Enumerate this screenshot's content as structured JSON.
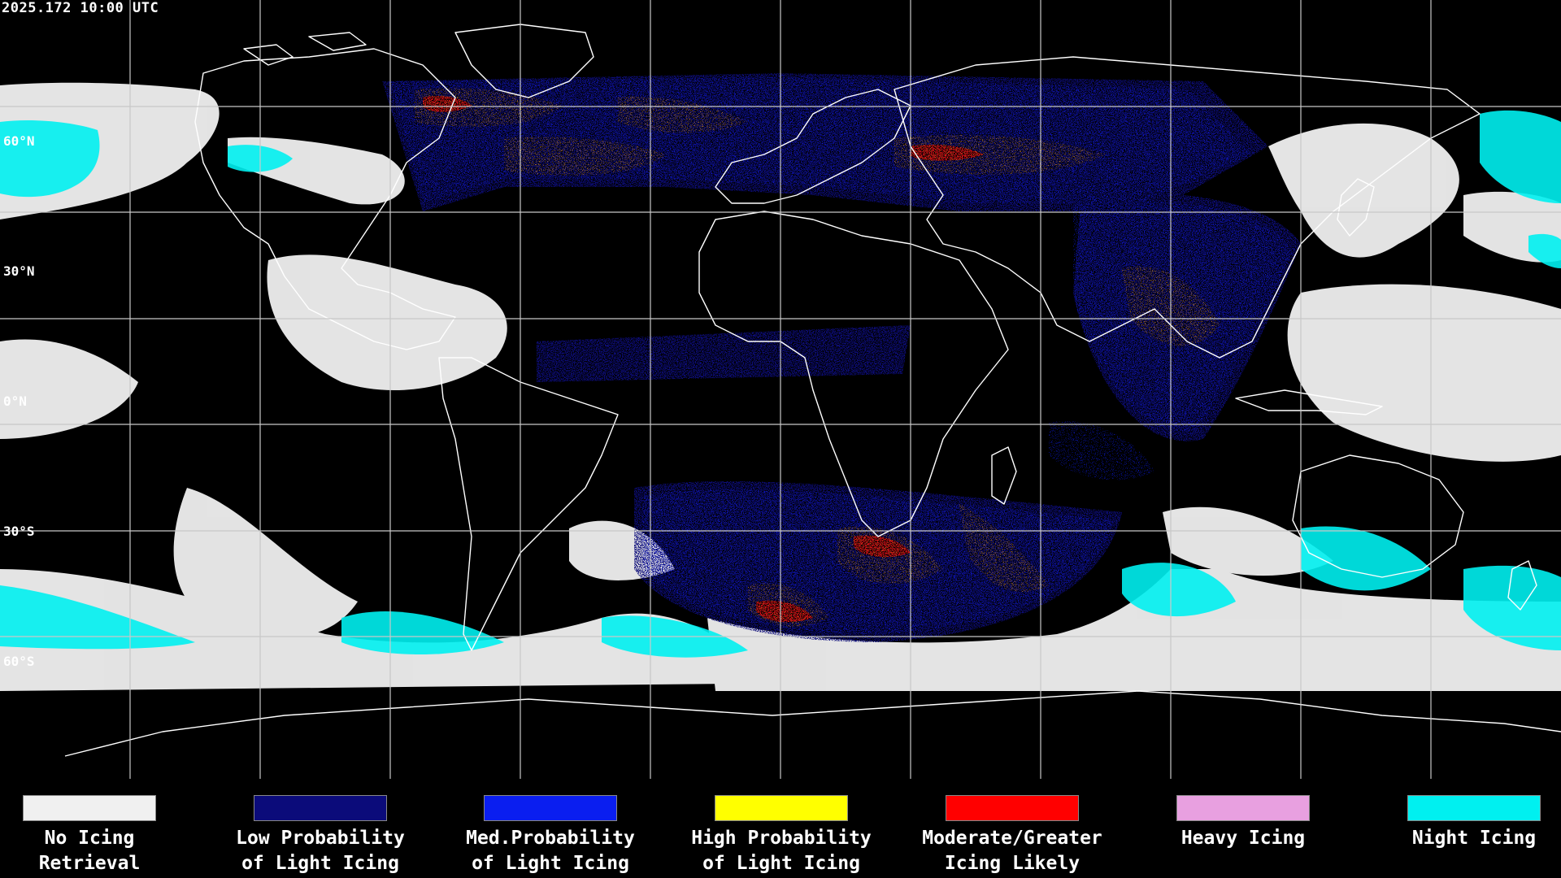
{
  "timestamp": "2025.172 10:00 UTC",
  "latitude_labels": [
    {
      "id": "60n",
      "text": "60°N"
    },
    {
      "id": "30n",
      "text": "30°N"
    },
    {
      "id": "0n",
      "text": "0°N"
    },
    {
      "id": "30s",
      "text": "30°S"
    },
    {
      "id": "60s",
      "text": "60°S"
    }
  ],
  "legend": [
    {
      "id": "no-icing",
      "label": "No Icing\nRetrieval",
      "color": "#f0f0f0"
    },
    {
      "id": "low-probability",
      "label": "Low Probability\nof Light Icing",
      "color": "#0b0b7a"
    },
    {
      "id": "med-probability",
      "label": "Med.Probability\nof Light Icing",
      "color": "#0a1ef0"
    },
    {
      "id": "high-probability",
      "label": "High Probability\nof Light Icing",
      "color": "#ffff00"
    },
    {
      "id": "moderate-greater",
      "label": "Moderate/Greater\nIcing Likely",
      "color": "#ff0000"
    },
    {
      "id": "heavy-icing",
      "label": "Heavy Icing",
      "color": "#e8a0e0"
    },
    {
      "id": "night-icing",
      "label": "Night Icing",
      "color": "#00f0f0"
    }
  ],
  "colors": {
    "background": "#000000",
    "grid": "#c8c8c8",
    "coastline": "#ffffff"
  }
}
